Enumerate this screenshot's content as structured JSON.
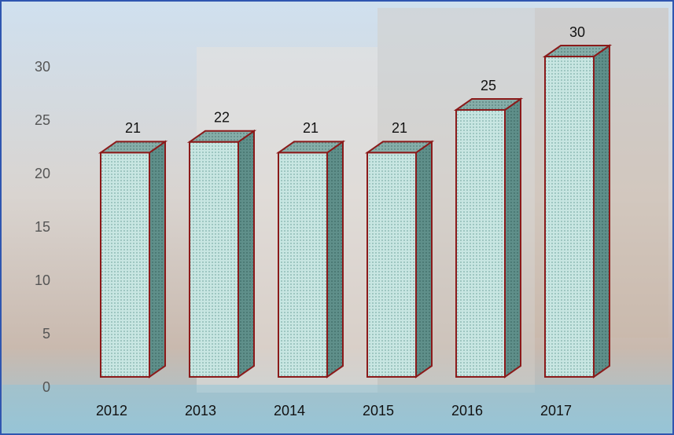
{
  "chart_data": {
    "type": "bar3d",
    "categories": [
      "2012",
      "2013",
      "2014",
      "2015",
      "2016",
      "2017"
    ],
    "values": [
      21,
      22,
      21,
      21,
      25,
      30
    ],
    "color": "#bfe0dc",
    "ylim": [
      0,
      30
    ],
    "yticks": [
      0,
      5,
      10,
      15,
      20,
      25,
      30
    ],
    "grid": false
  }
}
